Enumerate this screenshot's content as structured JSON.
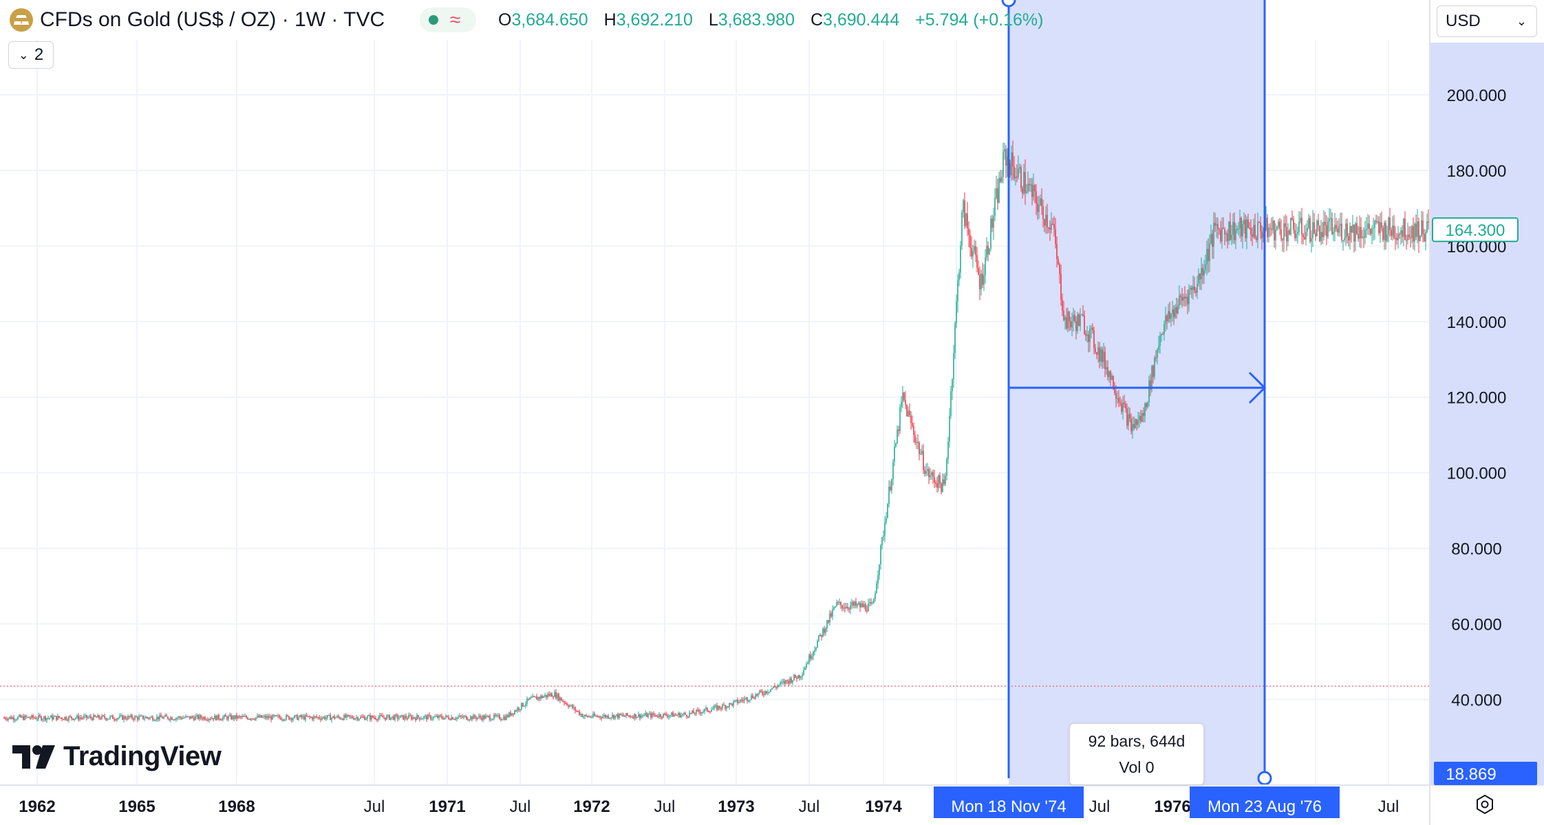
{
  "header": {
    "symbol_title": "CFDs on Gold (US$ / OZ) · 1W · TVC",
    "status_wave": "≈",
    "ohlc": {
      "o_label": "O",
      "o_value": "3,684.650",
      "h_label": "H",
      "h_value": "3,692.210",
      "l_label": "L",
      "l_value": "3,683.980",
      "c_label": "C",
      "c_value": "3,690.444",
      "change": "+5.794",
      "change_pct": "(+0.16%)"
    }
  },
  "legend_toggle": {
    "count": "2"
  },
  "currency": {
    "label": "USD"
  },
  "price_axis": {
    "labels": [
      "200.000",
      "180.000",
      "160.000",
      "140.000",
      "120.000",
      "100.000",
      "80.000",
      "60.000",
      "40.000"
    ],
    "current_price": "164.300",
    "crosshair_price": "18.869"
  },
  "time_axis": {
    "labels": [
      "1962",
      "1965",
      "1968",
      "Jul",
      "1971",
      "Jul",
      "1972",
      "Jul",
      "1973",
      "Jul",
      "1974",
      "Jul",
      "1976",
      "Jul"
    ],
    "range_start": "Mon 18 Nov '74",
    "range_end": "Mon 23 Aug '76"
  },
  "measure_tooltip": {
    "bars": "92 bars, 644d",
    "vol": "Vol 0"
  },
  "watermark": {
    "text": "TradingView"
  },
  "icons": {
    "symbol_logo": "gold-bars-icon",
    "status_dot": "market-status-dot-icon",
    "settings": "settings-gear-icon",
    "legend_chevron": "chevron-down-icon",
    "currency_chevron": "chevron-down-icon"
  },
  "colors": {
    "up": "#22ab94",
    "down": "#f23645",
    "measure": "#2962ff",
    "measure_fill": "#d6defc",
    "gold_icon": "#c8a046"
  },
  "chart_data": {
    "type": "candlestick",
    "title": "CFDs on Gold (US$ / OZ) · 1W · TVC",
    "ylim": [
      18.869,
      210
    ],
    "yticks": [
      40,
      60,
      80,
      100,
      120,
      140,
      160,
      180,
      200
    ],
    "xticks": [
      "1962",
      "1965",
      "1968",
      "Jul",
      "1971",
      "Jul",
      "1972",
      "Jul",
      "1973",
      "Jul",
      "1974",
      "Jul",
      "1976",
      "Jul"
    ],
    "last_price": 164.3,
    "series": [
      {
        "name": "",
        "x": [
          "1961-01",
          "1967-12",
          "1968-04",
          "1968-08",
          "1969-01",
          "1970-06",
          "1971-01",
          "1971-07",
          "1972-01",
          "1972-07",
          "1973-01",
          "1973-06",
          "1973-10",
          "1974-01",
          "1974-04",
          "1974-07",
          "1974-11",
          "1975-03",
          "1975-07",
          "1975-09",
          "1975-12",
          "1976-04",
          "1976-08",
          "1976-10",
          "1977-01",
          "1977-04",
          "1977-07",
          "1977-10"
        ],
        "values": [
          35.2,
          35.3,
          40.0,
          41.5,
          35.5,
          36.0,
          38.5,
          42.0,
          46.5,
          65.0,
          64.5,
          120.0,
          100.0,
          96.0,
          170.0,
          150.0,
          184.0,
          175.0,
          165.0,
          140.0,
          140.0,
          128.0,
          112.0,
          115.0,
          138.0,
          145.0,
          150.0,
          164.3
        ]
      }
    ],
    "measure_range": {
      "start": "1974-11-18",
      "end": "1976-08-23",
      "bars": 92,
      "days": 644,
      "volume": 0
    }
  }
}
